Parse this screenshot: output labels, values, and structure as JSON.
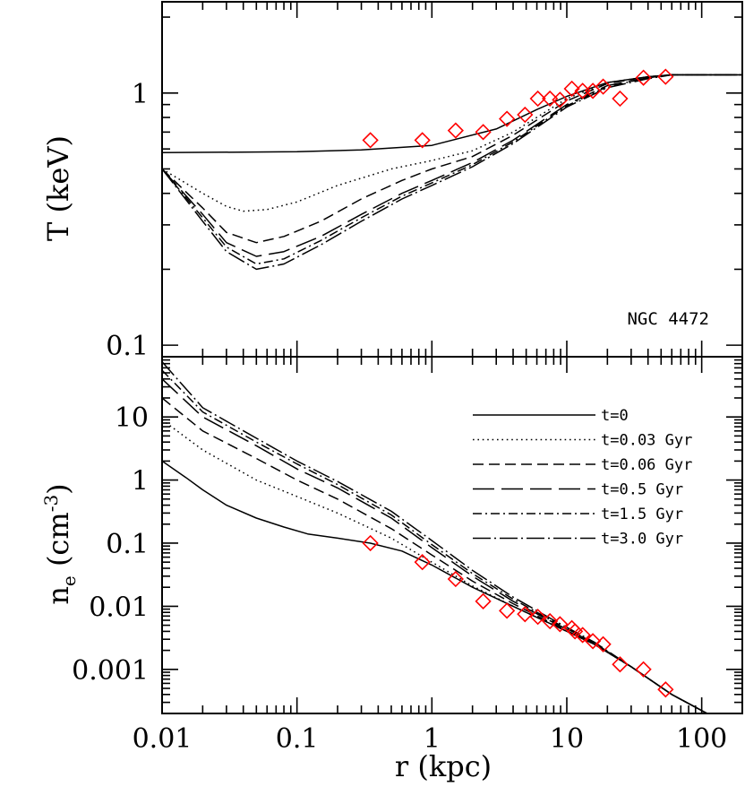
{
  "chart_data": [
    {
      "type": "line",
      "panel": "top",
      "ylabel": "T (keV)",
      "xlabel": "",
      "xscale": "log",
      "yscale": "log",
      "xlim": [
        0.01,
        200
      ],
      "ylim": [
        0.09,
        2.3
      ],
      "y_tick_labels": [
        "0.1",
        "1"
      ],
      "annotation": "NGC 4472",
      "grid": false,
      "series": [
        {
          "name": "t=0",
          "dash": "solid",
          "x": [
            0.01,
            0.1,
            0.3,
            1,
            3,
            6,
            10,
            20,
            40,
            60,
            100,
            200
          ],
          "y": [
            0.58,
            0.585,
            0.595,
            0.62,
            0.72,
            0.86,
            0.97,
            1.1,
            1.16,
            1.18,
            1.18,
            1.18
          ]
        },
        {
          "name": "t=0.03 Gyr",
          "dash": "dotted",
          "x": [
            0.01,
            0.02,
            0.03,
            0.04,
            0.06,
            0.1,
            0.2,
            0.5,
            1,
            2,
            4,
            10,
            20,
            40,
            60,
            100,
            200
          ],
          "y": [
            0.5,
            0.4,
            0.355,
            0.34,
            0.345,
            0.37,
            0.43,
            0.5,
            0.54,
            0.59,
            0.7,
            0.95,
            1.1,
            1.16,
            1.18,
            1.18,
            1.18
          ]
        },
        {
          "name": "t=0.06 Gyr",
          "dash": "dashed",
          "x": [
            0.01,
            0.02,
            0.03,
            0.05,
            0.08,
            0.15,
            0.3,
            0.6,
            1,
            2,
            4,
            10,
            20,
            40,
            60,
            100,
            200
          ],
          "y": [
            0.5,
            0.35,
            0.28,
            0.255,
            0.27,
            0.31,
            0.38,
            0.45,
            0.5,
            0.56,
            0.68,
            0.93,
            1.09,
            1.16,
            1.18,
            1.18,
            1.18
          ]
        },
        {
          "name": "t=0.5 Gyr",
          "dash": "longdash",
          "x": [
            0.01,
            0.02,
            0.03,
            0.05,
            0.08,
            0.15,
            0.3,
            0.6,
            1,
            2,
            4,
            10,
            20,
            40,
            60,
            100,
            200
          ],
          "y": [
            0.5,
            0.33,
            0.255,
            0.225,
            0.235,
            0.27,
            0.33,
            0.4,
            0.45,
            0.53,
            0.65,
            0.9,
            1.07,
            1.15,
            1.18,
            1.18,
            1.18
          ]
        },
        {
          "name": "t=1.5 Gyr",
          "dash": "dotdash",
          "x": [
            0.01,
            0.02,
            0.03,
            0.05,
            0.08,
            0.15,
            0.3,
            0.6,
            1,
            2,
            4,
            10,
            20,
            40,
            60,
            100,
            200
          ],
          "y": [
            0.5,
            0.32,
            0.245,
            0.21,
            0.22,
            0.26,
            0.32,
            0.39,
            0.44,
            0.52,
            0.64,
            0.89,
            1.06,
            1.15,
            1.18,
            1.18,
            1.18
          ]
        },
        {
          "name": "t=3.0 Gyr",
          "dash": "dotlongdash",
          "x": [
            0.01,
            0.02,
            0.03,
            0.05,
            0.08,
            0.15,
            0.3,
            0.6,
            1,
            2,
            4,
            10,
            20,
            40,
            60,
            100,
            200
          ],
          "y": [
            0.5,
            0.31,
            0.235,
            0.2,
            0.21,
            0.25,
            0.31,
            0.38,
            0.43,
            0.51,
            0.63,
            0.88,
            1.05,
            1.14,
            1.18,
            1.18,
            1.18
          ]
        }
      ],
      "observed": {
        "marker": "diamond",
        "color": "#ff0000",
        "x": [
          0.35,
          0.85,
          1.5,
          2.4,
          3.6,
          4.9,
          6.1,
          7.5,
          8.9,
          10.9,
          13.1,
          15.6,
          18.6,
          24.8,
          37,
          54
        ],
        "y": [
          0.65,
          0.65,
          0.71,
          0.7,
          0.79,
          0.82,
          0.95,
          0.95,
          0.94,
          1.04,
          1.02,
          1.02,
          1.06,
          0.95,
          1.15,
          1.16
        ]
      }
    },
    {
      "type": "line",
      "panel": "bottom",
      "ylabel": "n_e (cm^-3)",
      "xlabel": "r (kpc)",
      "xscale": "log",
      "yscale": "log",
      "xlim": [
        0.01,
        200
      ],
      "ylim": [
        0.0002,
        90
      ],
      "x_tick_labels": [
        "0.01",
        "0.1",
        "1",
        "10",
        "100"
      ],
      "y_tick_labels": [
        "0.001",
        "0.01",
        "0.1",
        "1",
        "10"
      ],
      "legend_position": "top-right",
      "grid": false,
      "series": [
        {
          "name": "t=0",
          "dash": "solid",
          "x": [
            0.01,
            0.015,
            0.02,
            0.03,
            0.05,
            0.08,
            0.12,
            0.2,
            0.35,
            0.6,
            1,
            2,
            4,
            8,
            16,
            30,
            60,
            120
          ],
          "y": [
            2,
            1.1,
            0.7,
            0.4,
            0.25,
            0.18,
            0.14,
            0.12,
            0.1,
            0.075,
            0.045,
            0.02,
            0.01,
            0.005,
            0.0025,
            0.0011,
            0.0004,
            0.00018
          ]
        },
        {
          "name": "t=0.03 Gyr",
          "dash": "dotted",
          "x": [
            0.01,
            0.02,
            0.05,
            0.1,
            0.2,
            0.5,
            1,
            2,
            4,
            8,
            16,
            30,
            60,
            120
          ],
          "y": [
            9,
            3,
            1,
            0.55,
            0.3,
            0.12,
            0.05,
            0.021,
            0.01,
            0.005,
            0.0025,
            0.0011,
            0.0004,
            0.00018
          ]
        },
        {
          "name": "t=0.06 Gyr",
          "dash": "dashed",
          "x": [
            0.01,
            0.02,
            0.05,
            0.1,
            0.2,
            0.5,
            1,
            2,
            4,
            8,
            16,
            30,
            60,
            120
          ],
          "y": [
            20,
            6,
            2.2,
            1,
            0.5,
            0.17,
            0.065,
            0.025,
            0.011,
            0.0052,
            0.0025,
            0.0011,
            0.0004,
            0.00018
          ]
        },
        {
          "name": "t=0.5 Gyr",
          "dash": "longdash",
          "x": [
            0.01,
            0.02,
            0.05,
            0.1,
            0.2,
            0.5,
            1,
            2,
            4,
            8,
            16,
            30,
            60,
            120
          ],
          "y": [
            40,
            10,
            3.5,
            1.5,
            0.75,
            0.25,
            0.085,
            0.03,
            0.012,
            0.0055,
            0.0026,
            0.0011,
            0.0004,
            0.00018
          ]
        },
        {
          "name": "t=1.5 Gyr",
          "dash": "dotdash",
          "x": [
            0.01,
            0.02,
            0.05,
            0.1,
            0.2,
            0.5,
            1,
            2,
            4,
            8,
            16,
            30,
            60,
            120
          ],
          "y": [
            55,
            12,
            4,
            1.8,
            0.85,
            0.28,
            0.095,
            0.033,
            0.013,
            0.0057,
            0.0026,
            0.0011,
            0.0004,
            0.00018
          ]
        },
        {
          "name": "t=3.0 Gyr",
          "dash": "dotlongdash",
          "x": [
            0.01,
            0.02,
            0.05,
            0.1,
            0.2,
            0.5,
            1,
            2,
            4,
            8,
            16,
            30,
            60,
            120
          ],
          "y": [
            75,
            14,
            4.6,
            2,
            0.95,
            0.32,
            0.11,
            0.037,
            0.014,
            0.006,
            0.0027,
            0.0011,
            0.0004,
            0.00018
          ]
        }
      ],
      "observed": {
        "marker": "diamond",
        "color": "#ff0000",
        "x": [
          0.35,
          0.85,
          1.5,
          2.4,
          3.6,
          4.9,
          6.1,
          7.5,
          8.9,
          10.9,
          11.5,
          13.1,
          15.6,
          18.6,
          24.8,
          37,
          54
        ],
        "y": [
          0.1,
          0.05,
          0.027,
          0.012,
          0.0085,
          0.0075,
          0.0068,
          0.0058,
          0.0052,
          0.0045,
          0.004,
          0.0035,
          0.0028,
          0.0025,
          0.0012,
          0.001,
          0.00048
        ]
      }
    }
  ]
}
